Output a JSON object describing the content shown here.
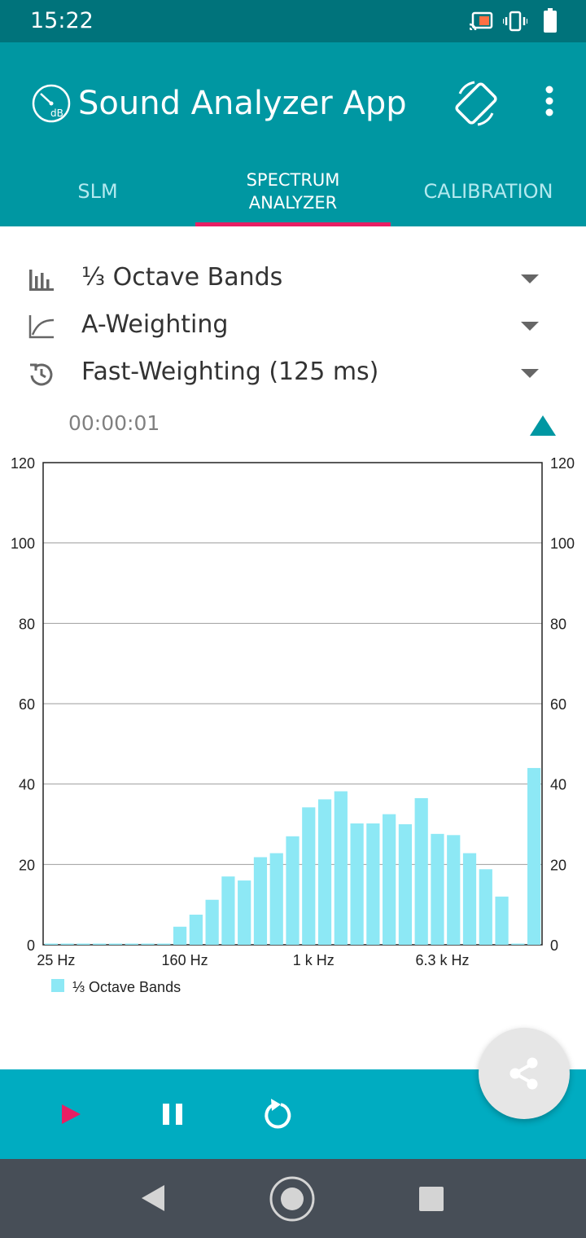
{
  "status_bar": {
    "time": "15:22",
    "icons": [
      "cast-icon",
      "vibrate-icon",
      "battery-icon"
    ]
  },
  "app_bar": {
    "title": "Sound Analyzer App",
    "logo_icon": "db-gauge-icon",
    "actions": [
      "screen-rotation-icon",
      "more-vert-icon"
    ]
  },
  "tabs": [
    {
      "label": "SLM",
      "selected": false
    },
    {
      "label": "SPECTRUM\nANALYZER",
      "selected": true
    },
    {
      "label": "CALIBRATION",
      "selected": false
    }
  ],
  "colors": {
    "status_bar": "#00737b",
    "app_bar": "#0097a2",
    "tab_indicator": "#e91e63",
    "bar_fill": "#8de8f5",
    "control_bar": "#00acc1",
    "play_icon": "#e91e63",
    "nav_bar": "#474e57"
  },
  "selectors": {
    "band": {
      "label": "⅓ Octave Bands",
      "icon": "bar-chart-icon"
    },
    "weighting": {
      "label": "A-Weighting",
      "icon": "curve-icon"
    },
    "time_weighting": {
      "label": "Fast-Weighting (125 ms)",
      "icon": "timer-history-icon"
    }
  },
  "timer": "00:00:01",
  "chart_data": {
    "type": "bar",
    "title": "",
    "xlabel": "",
    "ylabel": "",
    "ylim": [
      0,
      120
    ],
    "yticks": [
      0,
      20,
      40,
      60,
      80,
      100,
      120
    ],
    "x_tick_labels": [
      {
        "label": "25 Hz",
        "band_index": 0
      },
      {
        "label": "160 Hz",
        "band_index": 8
      },
      {
        "label": "1 k Hz",
        "band_index": 16
      },
      {
        "label": "6.3 k Hz",
        "band_index": 24
      }
    ],
    "grid": true,
    "legend_position": "bottom-left",
    "series": [
      {
        "name": "⅓ Octave Bands",
        "values": [
          0.3,
          0.3,
          0.3,
          0.3,
          0.3,
          0.3,
          0.3,
          0.3,
          4.5,
          7.5,
          11.2,
          17.0,
          16.0,
          21.8,
          22.8,
          27.0,
          34.2,
          36.2,
          38.2,
          30.2,
          30.2,
          32.5,
          30.0,
          36.5,
          27.6,
          27.3,
          22.8,
          18.8,
          12.0,
          0.3,
          44.0
        ]
      }
    ]
  },
  "controls": {
    "play_icon": "play-icon",
    "pause_icon": "pause-icon",
    "reset_icon": "refresh-icon",
    "share_icon": "share-icon"
  },
  "nav": [
    "back-icon",
    "home-icon",
    "recents-icon"
  ]
}
